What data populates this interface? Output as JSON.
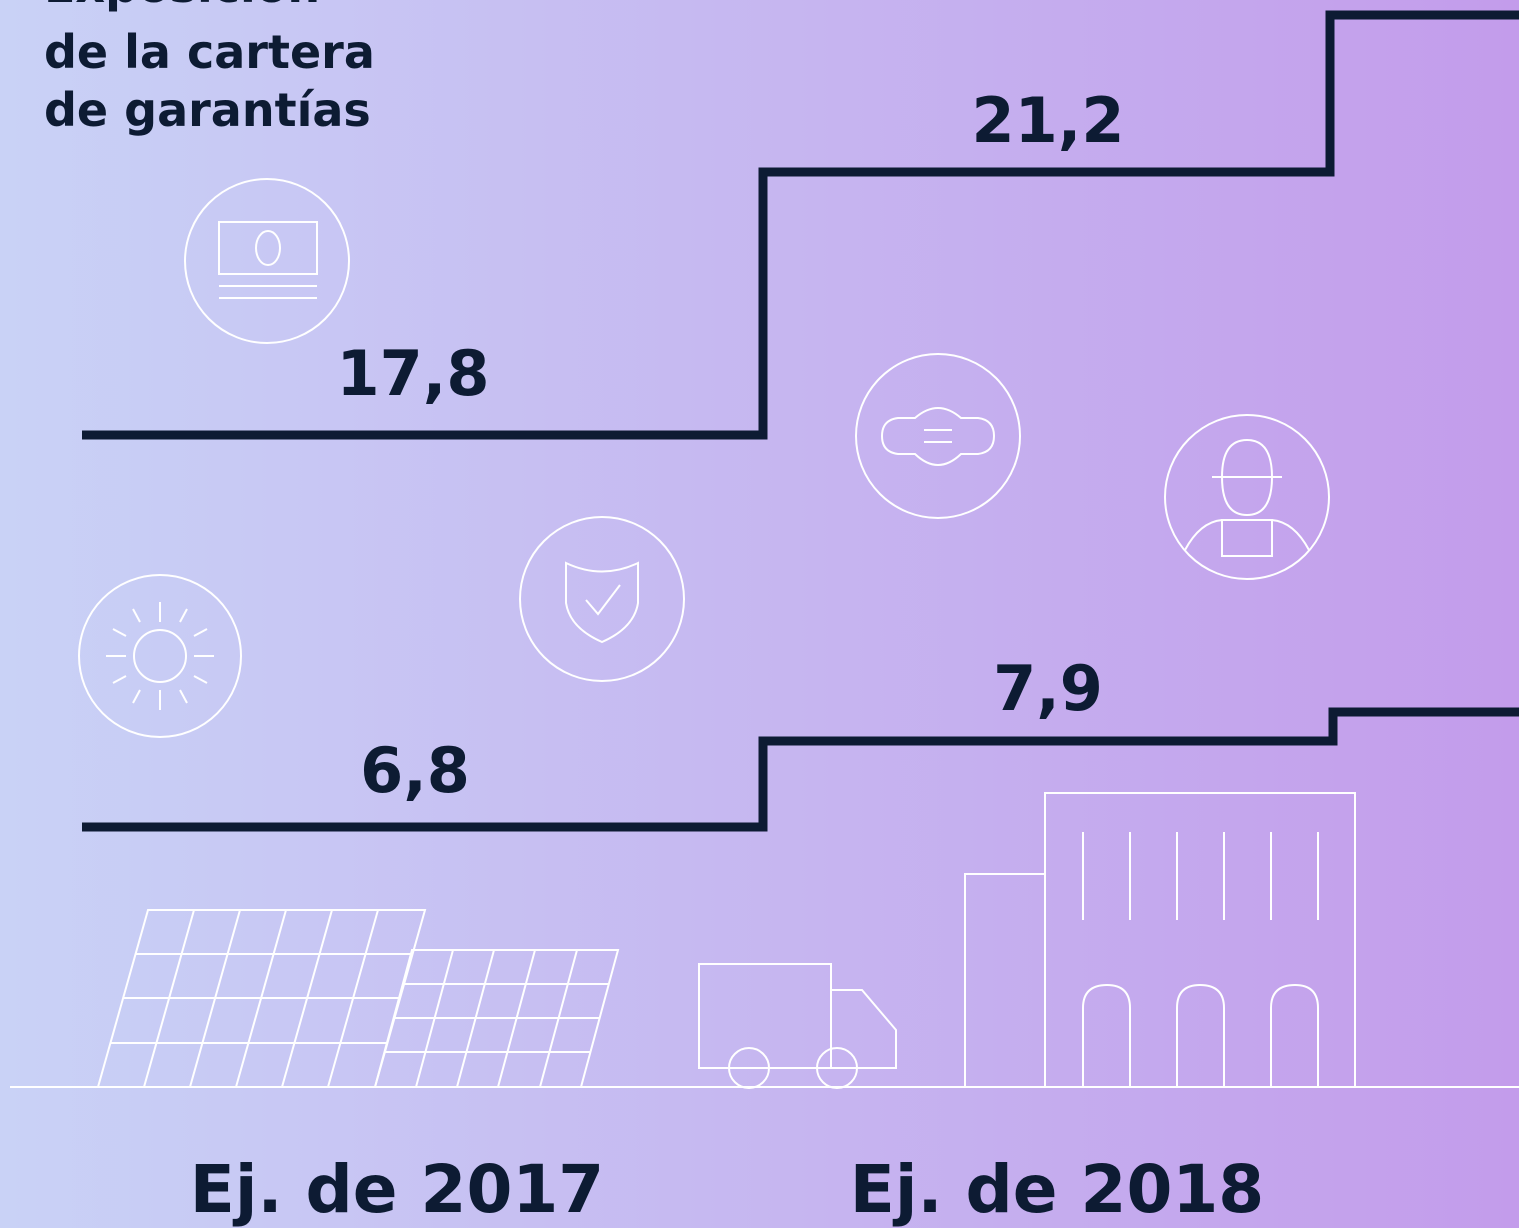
{
  "title_lines": [
    "Exposición",
    "de la cartera",
    "de garantías"
  ],
  "upper_series": [
    "17,8",
    "21,2"
  ],
  "lower_series": [
    "6,8",
    "7,9"
  ],
  "periods": [
    "Ej. de 2017",
    "Ej. de 2018"
  ]
}
